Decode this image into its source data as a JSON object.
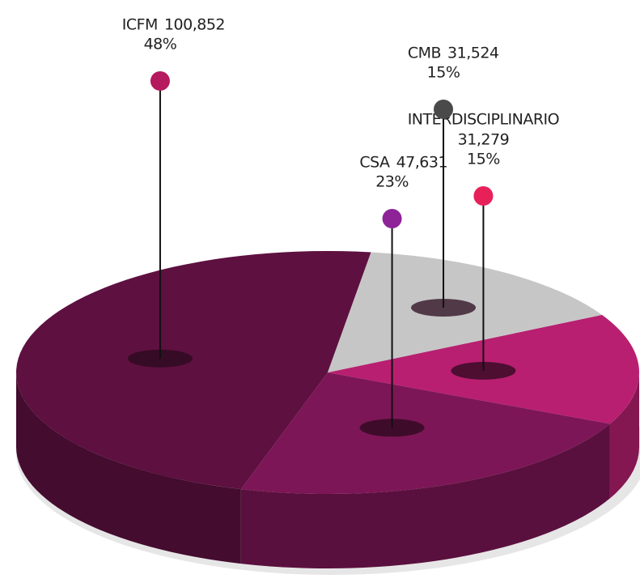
{
  "chart_data": {
    "type": "pie3d",
    "categories": [
      "ICFM",
      "CSA",
      "INTERDISCIPLINARIO",
      "CMB"
    ],
    "values": [
      100852,
      47631,
      31279,
      31524
    ],
    "value_labels": [
      "100,852",
      "47,631",
      "31,279",
      "31,524"
    ],
    "percents": [
      48,
      23,
      15,
      15
    ],
    "percent_labels": [
      "48%",
      "23%",
      "15%",
      "15%"
    ],
    "colors": [
      "#5e1040",
      "#7d1656",
      "#b81f70",
      "#c6c6c6"
    ],
    "pin_colors": [
      "#b5195e",
      "#8e2398",
      "#e8205a",
      "#4a4a4a"
    ]
  }
}
